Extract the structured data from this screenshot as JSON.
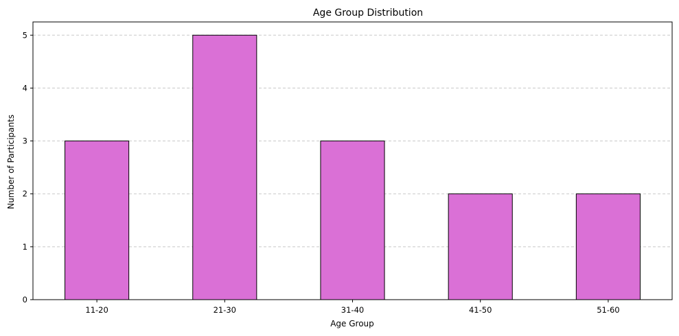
{
  "chart_data": {
    "type": "bar",
    "title": "Age Group Distribution",
    "xlabel": "Age Group",
    "ylabel": "Number of Participants",
    "categories": [
      "11-20",
      "21-30",
      "31-40",
      "41-50",
      "51-60"
    ],
    "values": [
      3,
      5,
      3,
      2,
      2
    ],
    "ylim": [
      0,
      5.25
    ],
    "yticks": [
      0,
      1,
      2,
      3,
      4,
      5
    ],
    "grid": "y-dashed",
    "bar_color": "#da70d6",
    "bar_edge_color": "#000000",
    "grid_color": "#c8c8c8"
  }
}
